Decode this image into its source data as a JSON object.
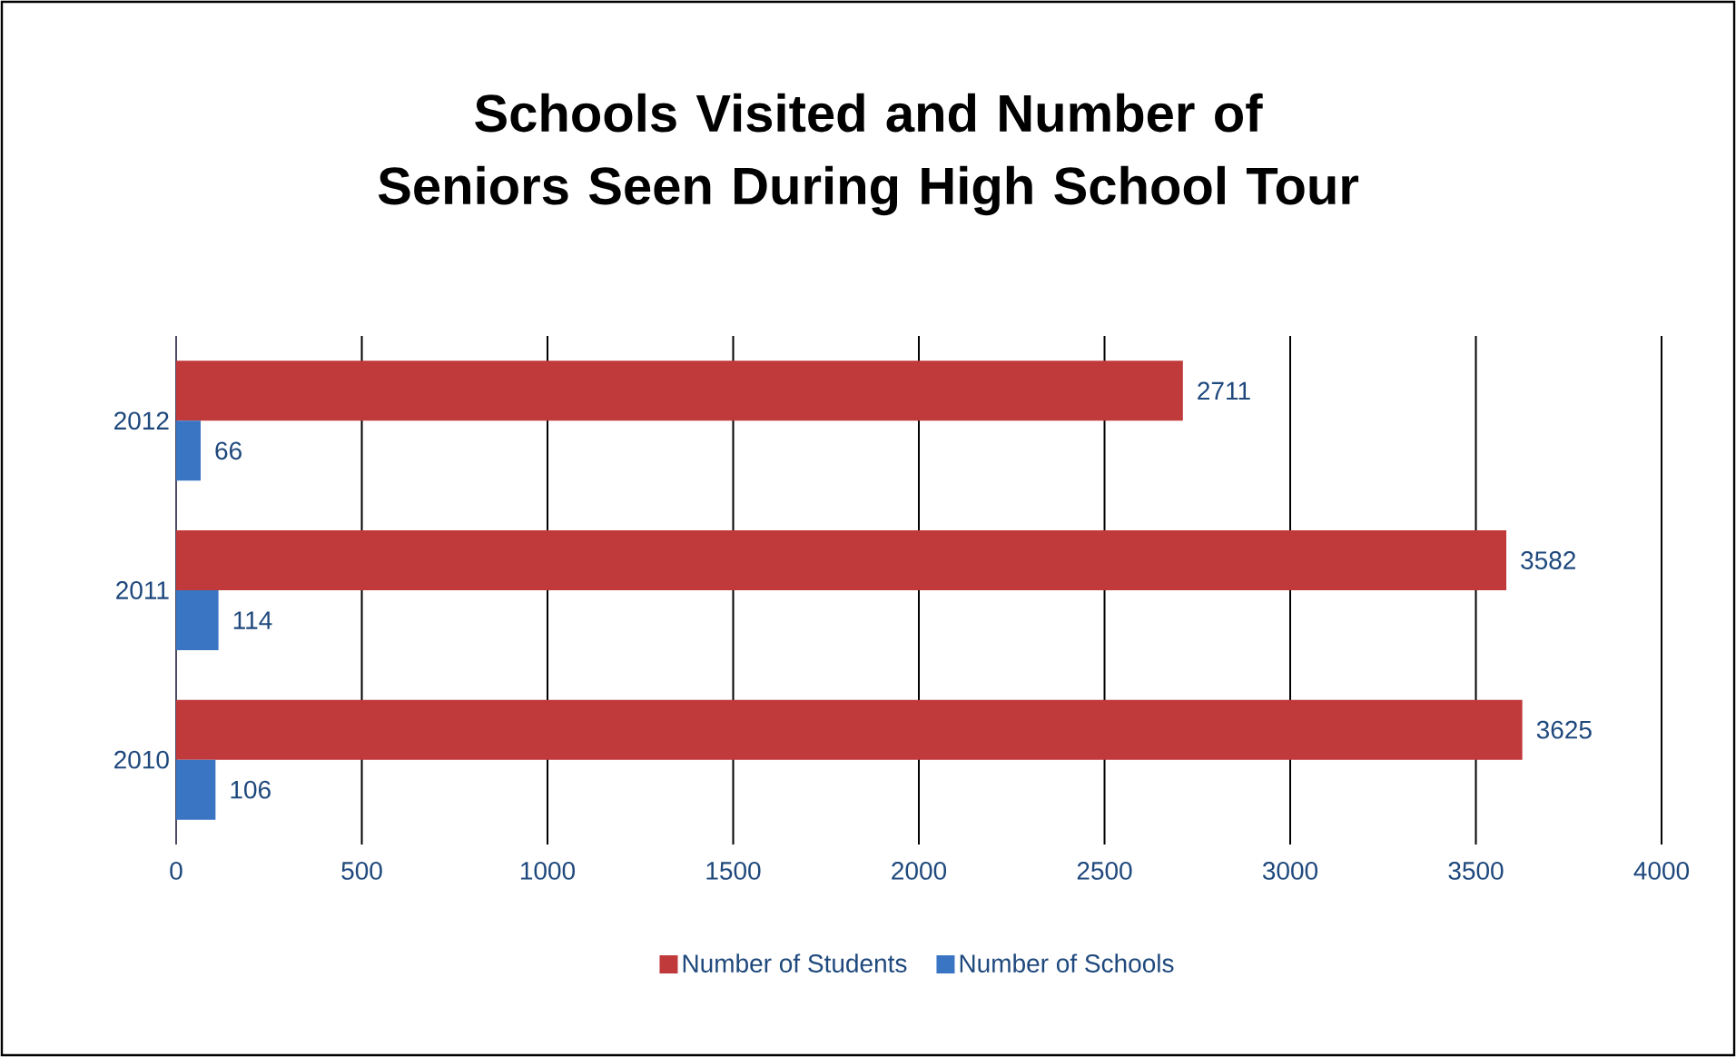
{
  "chart_data": {
    "type": "bar",
    "orientation": "horizontal",
    "title": "Schools Visited and Number of Seniors Seen During High School Tour",
    "categories": [
      "2012",
      "2011",
      "2010"
    ],
    "series": [
      {
        "name": "Number of Students",
        "color": "#c0393b",
        "values": [
          2711,
          3582,
          3625
        ]
      },
      {
        "name": "Number of Schools",
        "color": "#3a75c4",
        "values": [
          66,
          114,
          106
        ]
      }
    ],
    "xlim": [
      0,
      4000
    ],
    "xticks": [
      0,
      500,
      1000,
      1500,
      2000,
      2500,
      3000,
      3500,
      4000
    ],
    "grid": "x",
    "legend": "bottom",
    "data_labels": true
  }
}
